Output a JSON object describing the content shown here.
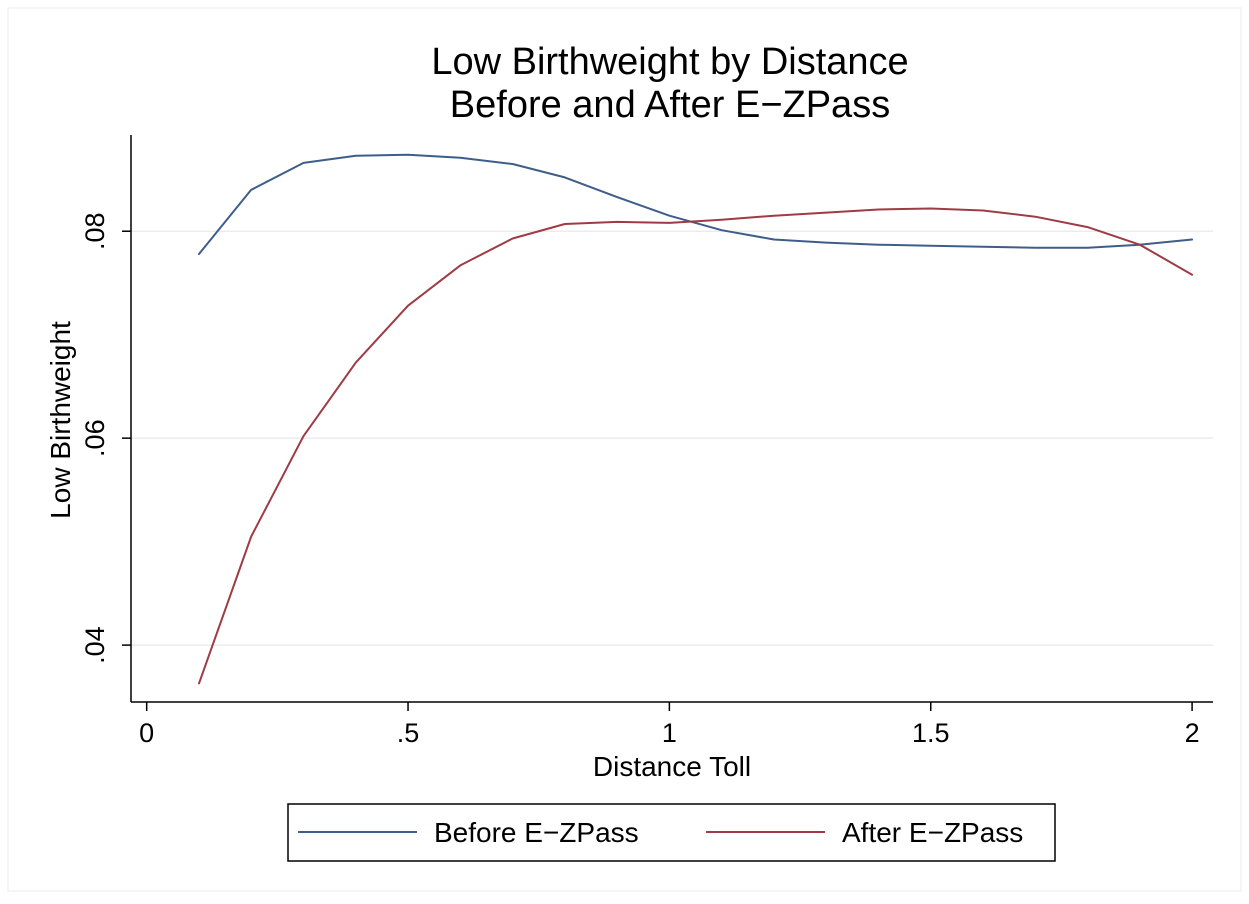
{
  "chart_data": {
    "type": "line",
    "title": [
      "Low Birthweight by Distance",
      "Before and After E−ZPass"
    ],
    "xlabel": "Distance Toll",
    "ylabel": "Low Birthweight",
    "xlim": [
      -0.03,
      2.04
    ],
    "ylim": [
      0.0345,
      0.0893
    ],
    "x_ticks": [
      {
        "value": 0,
        "label": "0"
      },
      {
        "value": 0.5,
        "label": ".5"
      },
      {
        "value": 1,
        "label": "1"
      },
      {
        "value": 1.5,
        "label": "1.5"
      },
      {
        "value": 2,
        "label": "2"
      }
    ],
    "y_ticks": [
      {
        "value": 0.04,
        "label": ".04"
      },
      {
        "value": 0.06,
        "label": ".06"
      },
      {
        "value": 0.08,
        "label": ".08"
      }
    ],
    "grid": "horizontal",
    "legend_position": "bottom",
    "series": [
      {
        "name": "Before E−ZPass",
        "color": "#3e5d8b",
        "x": [
          0.1,
          0.2,
          0.3,
          0.4,
          0.5,
          0.6,
          0.7,
          0.8,
          0.9,
          1.0,
          1.1,
          1.2,
          1.3,
          1.4,
          1.5,
          1.6,
          1.7,
          1.8,
          1.9,
          2.0
        ],
        "y": [
          0.0778,
          0.084,
          0.0866,
          0.0873,
          0.0874,
          0.0871,
          0.0865,
          0.0852,
          0.0833,
          0.0815,
          0.0801,
          0.0792,
          0.0789,
          0.0787,
          0.0786,
          0.0785,
          0.0784,
          0.0784,
          0.0787,
          0.0792
        ]
      },
      {
        "name": "After E−ZPass",
        "color": "#9e3b45",
        "x": [
          0.1,
          0.2,
          0.3,
          0.4,
          0.5,
          0.6,
          0.7,
          0.8,
          0.9,
          1.0,
          1.1,
          1.2,
          1.3,
          1.4,
          1.5,
          1.6,
          1.7,
          1.8,
          1.9,
          2.0
        ],
        "y": [
          0.0363,
          0.0505,
          0.0602,
          0.0673,
          0.0728,
          0.0767,
          0.0793,
          0.0807,
          0.0809,
          0.0808,
          0.0811,
          0.0815,
          0.0818,
          0.0821,
          0.0822,
          0.082,
          0.0814,
          0.0804,
          0.0787,
          0.0758
        ]
      }
    ]
  }
}
